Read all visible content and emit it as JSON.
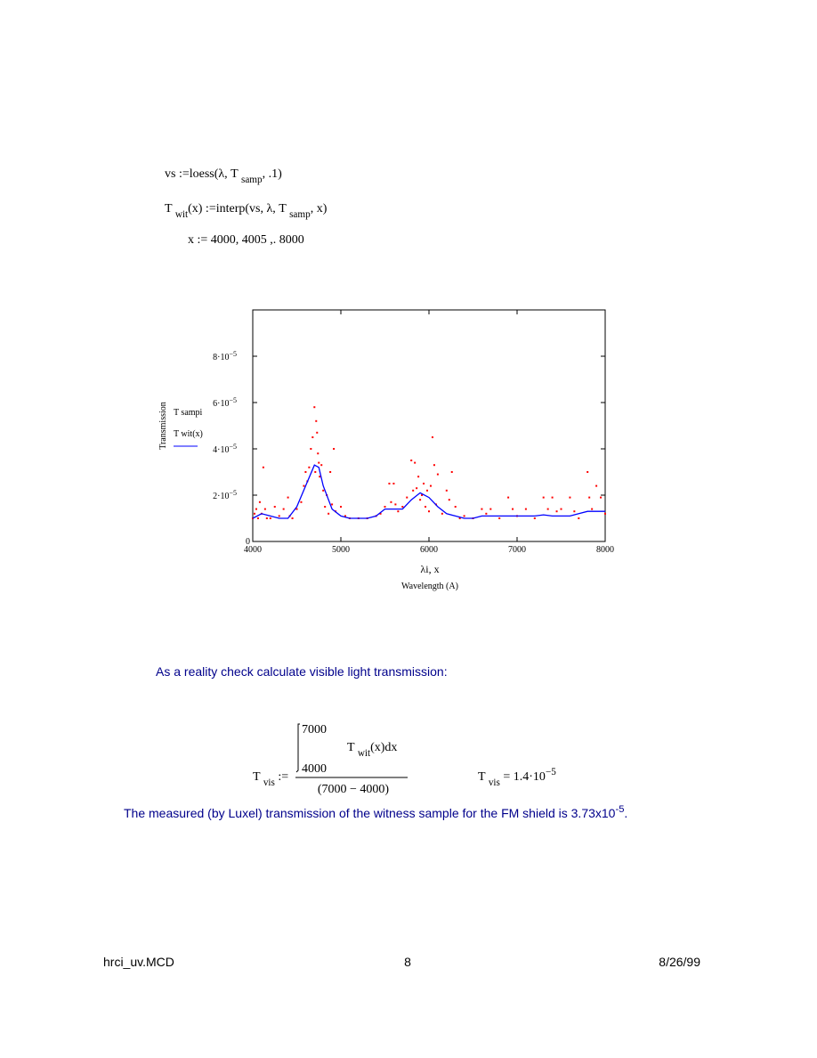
{
  "formulas": [
    {
      "pieces": [
        "vs :=loess(λ, T ",
        "samp",
        ", .1)"
      ]
    },
    {
      "pieces": [
        "T ",
        "wit",
        "(x) :=interp(vs, λ, T ",
        "samp",
        ", x)"
      ]
    },
    {
      "pieces": [
        "x := 4000, 4005 ,. 8000"
      ]
    }
  ],
  "chart_data": {
    "type": "scatter",
    "y_label": "Transmission",
    "x_label": "λi, x",
    "x_sublabel": "Wavelength (A)",
    "xlim": [
      4000,
      8000
    ],
    "xticks": [
      4000,
      5000,
      6000,
      7000,
      8000
    ],
    "ylim": [
      0,
      0.0001
    ],
    "yticks": [
      0,
      {
        "value": 2e-05,
        "label": "2·10−5"
      },
      {
        "value": 4e-05,
        "label": "4·10−5"
      },
      {
        "value": 6e-05,
        "label": "6·10−5"
      },
      {
        "value": 8e-05,
        "label": "8·10−5"
      }
    ],
    "series": [
      {
        "name": "T sampi",
        "color": "#ff0000",
        "mode": "markers",
        "x": [
          4000,
          4020,
          4040,
          4060,
          4080,
          4100,
          4120,
          4140,
          4160,
          4200,
          4250,
          4300,
          4350,
          4400,
          4420,
          4450,
          4500,
          4550,
          4580,
          4600,
          4620,
          4640,
          4660,
          4680,
          4700,
          4710,
          4720,
          4730,
          4740,
          4750,
          4760,
          4780,
          4800,
          4820,
          4840,
          4860,
          4880,
          4900,
          4920,
          4940,
          5000,
          5050,
          5100,
          5200,
          5300,
          5400,
          5450,
          5500,
          5550,
          5570,
          5600,
          5620,
          5650,
          5700,
          5750,
          5800,
          5820,
          5840,
          5860,
          5880,
          5900,
          5920,
          5940,
          5960,
          5980,
          6000,
          6020,
          6040,
          6060,
          6080,
          6100,
          6150,
          6200,
          6230,
          6260,
          6300,
          6350,
          6400,
          6500,
          6600,
          6650,
          6700,
          6800,
          6900,
          6950,
          7000,
          7100,
          7200,
          7300,
          7350,
          7400,
          7450,
          7500,
          7600,
          7650,
          7700,
          7800,
          7820,
          7850,
          7900,
          7950,
          8000
        ],
        "values": [
          1e-05,
          1.2e-05,
          1.4e-05,
          1e-05,
          1.7e-05,
          1.2e-05,
          3.2e-05,
          1.4e-05,
          1e-05,
          1e-05,
          1.5e-05,
          1.1e-05,
          1.4e-05,
          1.9e-05,
          1.1e-05,
          1e-05,
          1.4e-05,
          1.7e-05,
          2.4e-05,
          3e-05,
          2.6e-05,
          3.2e-05,
          4e-05,
          4.5e-05,
          5.8e-05,
          3e-05,
          5.2e-05,
          4.7e-05,
          3.8e-05,
          3.4e-05,
          2.8e-05,
          3.3e-05,
          2.2e-05,
          1.5e-05,
          2e-05,
          1.2e-05,
          3e-05,
          1.6e-05,
          4e-05,
          1.3e-05,
          1.5e-05,
          1.1e-05,
          1e-05,
          1e-05,
          1e-05,
          1.1e-05,
          1.2e-05,
          1.5e-05,
          2.5e-05,
          1.7e-05,
          2.5e-05,
          1.6e-05,
          1.3e-05,
          1.5e-05,
          1.9e-05,
          3.5e-05,
          2.2e-05,
          3.4e-05,
          2.3e-05,
          2.8e-05,
          1.8e-05,
          2e-05,
          2.5e-05,
          1.5e-05,
          2.2e-05,
          1.3e-05,
          2.4e-05,
          4.5e-05,
          3.3e-05,
          1.6e-05,
          2.9e-05,
          1.2e-05,
          2.2e-05,
          1.8e-05,
          3e-05,
          1.5e-05,
          1e-05,
          1.1e-05,
          1e-05,
          1.4e-05,
          1.2e-05,
          1.4e-05,
          1e-05,
          1.9e-05,
          1.4e-05,
          1.1e-05,
          1.4e-05,
          1e-05,
          1.9e-05,
          1.4e-05,
          1.9e-05,
          1.3e-05,
          1.4e-05,
          1.9e-05,
          1.3e-05,
          1e-05,
          3e-05,
          1.9e-05,
          1.4e-05,
          2.4e-05,
          1.9e-05,
          1.2e-05
        ]
      },
      {
        "name": "T wit(x)",
        "color": "#0000ff",
        "mode": "line",
        "x": [
          4000,
          4100,
          4200,
          4300,
          4400,
          4500,
          4600,
          4700,
          4750,
          4800,
          4900,
          5000,
          5100,
          5200,
          5300,
          5400,
          5500,
          5600,
          5700,
          5800,
          5900,
          6000,
          6100,
          6200,
          6300,
          6400,
          6500,
          6600,
          6700,
          6800,
          6900,
          7000,
          7100,
          7200,
          7300,
          7400,
          7500,
          7600,
          7700,
          7800,
          7900,
          8000
        ],
        "values": [
          1e-05,
          1.2e-05,
          1.1e-05,
          1e-05,
          1e-05,
          1.5e-05,
          2.4e-05,
          3.3e-05,
          3.2e-05,
          2.4e-05,
          1.4e-05,
          1.1e-05,
          1e-05,
          1e-05,
          1e-05,
          1.1e-05,
          1.4e-05,
          1.4e-05,
          1.4e-05,
          1.8e-05,
          2.1e-05,
          1.9e-05,
          1.5e-05,
          1.2e-05,
          1.1e-05,
          1e-05,
          1e-05,
          1.1e-05,
          1.1e-05,
          1.1e-05,
          1.1e-05,
          1.1e-05,
          1.1e-05,
          1.1e-05,
          1.15e-05,
          1.1e-05,
          1.1e-05,
          1.1e-05,
          1.2e-05,
          1.3e-05,
          1.3e-05,
          1.3e-05
        ]
      }
    ]
  },
  "check_text": "As a reality check calculate visible light transmission:",
  "integral": {
    "upper": "7000",
    "lower": "4000",
    "integrand": [
      "T ",
      "wit",
      "(x)dx"
    ],
    "denominator": "(7000 − 4000)",
    "lhs": [
      "T ",
      "vis",
      " :="
    ],
    "result": [
      "T ",
      "vis",
      " = 1.4·10",
      "−5"
    ]
  },
  "measured_text": [
    "The measured (by Luxel) transmission of the witness sample for the FM shield is 3.73x10",
    "-5",
    "."
  ],
  "footer": {
    "file": "hrci_uv.MCD",
    "page": "8",
    "date": "8/26/99"
  }
}
